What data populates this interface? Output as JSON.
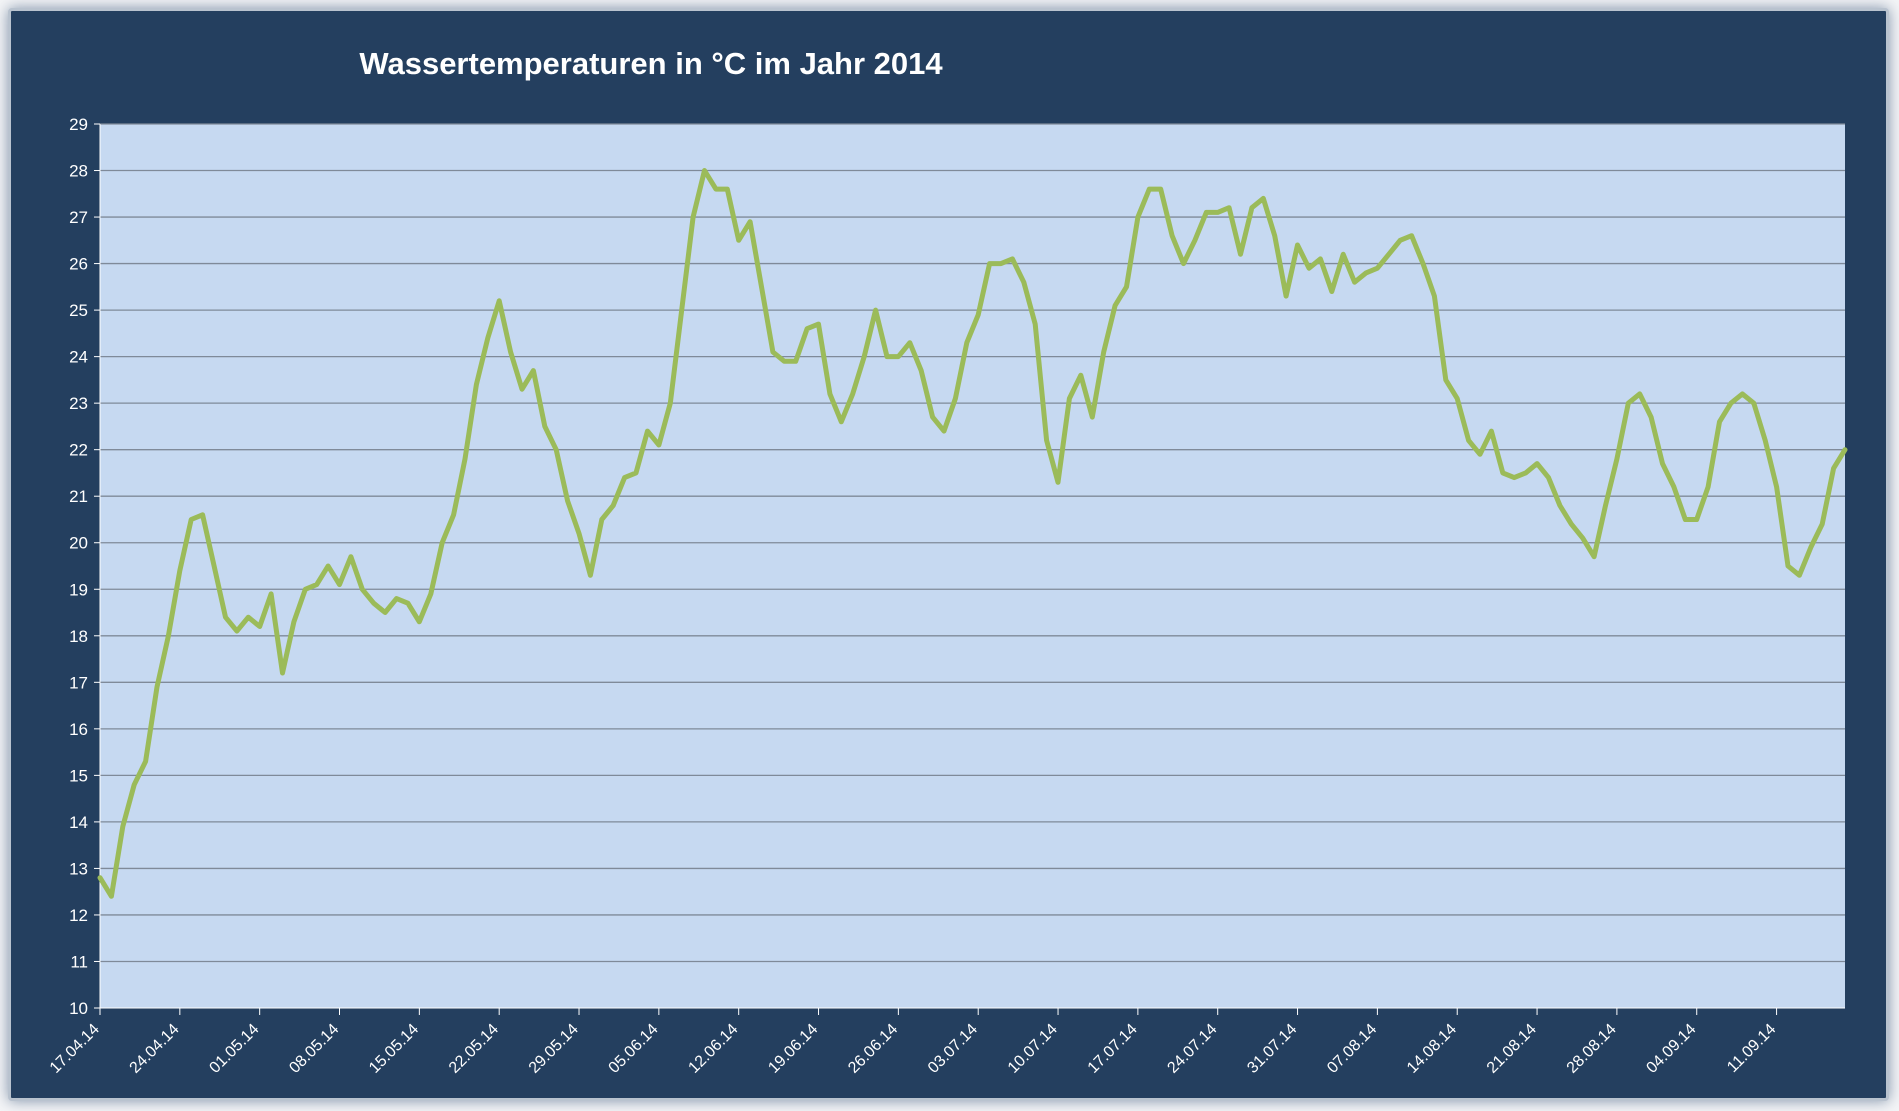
{
  "chart_data": {
    "type": "line",
    "title": "Wassertemperaturen in °C  im Jahr 2014",
    "xlabel": "",
    "ylabel": "",
    "ylim": [
      10,
      29
    ],
    "yticks": [
      10,
      11,
      12,
      13,
      14,
      15,
      16,
      17,
      18,
      19,
      20,
      21,
      22,
      23,
      24,
      25,
      26,
      27,
      28,
      29
    ],
    "xlim": [
      "2014-04-17",
      "2014-09-17"
    ],
    "xtick_labels": [
      "17.04.14",
      "24.04.14",
      "01.05.14",
      "08.05.14",
      "15.05.14",
      "22.05.14",
      "29.05.14",
      "05.06.14",
      "12.06.14",
      "19.06.14",
      "26.06.14",
      "03.07.14",
      "10.07.14",
      "17.07.14",
      "24.07.14",
      "31.07.14",
      "07.08.14",
      "14.08.14",
      "21.08.14",
      "28.08.14",
      "04.09.14",
      "11.09.14"
    ],
    "grid": true,
    "legend": "none",
    "colors": {
      "frame": "#243f5f",
      "plot_bg": "#c6d9f1",
      "grid": "#7f8a99",
      "line": "#9bbb59",
      "text": "#ffffff"
    },
    "series": [
      {
        "x": [
          "2014-04-17",
          "2014-04-18",
          "2014-04-19",
          "2014-04-20",
          "2014-04-21",
          "2014-04-22",
          "2014-04-23",
          "2014-04-24",
          "2014-04-25",
          "2014-04-26",
          "2014-04-27",
          "2014-04-28",
          "2014-04-29",
          "2014-04-30",
          "2014-05-01",
          "2014-05-02",
          "2014-05-03",
          "2014-05-04",
          "2014-05-05",
          "2014-05-06",
          "2014-05-07",
          "2014-05-08",
          "2014-05-09",
          "2014-05-10",
          "2014-05-11",
          "2014-05-12",
          "2014-05-13",
          "2014-05-14",
          "2014-05-15",
          "2014-05-16",
          "2014-05-17",
          "2014-05-18",
          "2014-05-19",
          "2014-05-20",
          "2014-05-21",
          "2014-05-22",
          "2014-05-23",
          "2014-05-24",
          "2014-05-25",
          "2014-05-26",
          "2014-05-27",
          "2014-05-28",
          "2014-05-29",
          "2014-05-30",
          "2014-05-31",
          "2014-06-01",
          "2014-06-02",
          "2014-06-03",
          "2014-06-04",
          "2014-06-05",
          "2014-06-06",
          "2014-06-07",
          "2014-06-08",
          "2014-06-09",
          "2014-06-10",
          "2014-06-11",
          "2014-06-12",
          "2014-06-13",
          "2014-06-14",
          "2014-06-15",
          "2014-06-16",
          "2014-06-17",
          "2014-06-18",
          "2014-06-19",
          "2014-06-20",
          "2014-06-21",
          "2014-06-22",
          "2014-06-23",
          "2014-06-24",
          "2014-06-25",
          "2014-06-26",
          "2014-06-27",
          "2014-06-28",
          "2014-06-29",
          "2014-06-30",
          "2014-07-01",
          "2014-07-02",
          "2014-07-03",
          "2014-07-04",
          "2014-07-05",
          "2014-07-06",
          "2014-07-07",
          "2014-07-08",
          "2014-07-09",
          "2014-07-10",
          "2014-07-11",
          "2014-07-12",
          "2014-07-13",
          "2014-07-14",
          "2014-07-15",
          "2014-07-16",
          "2014-07-17",
          "2014-07-18",
          "2014-07-19",
          "2014-07-20",
          "2014-07-21",
          "2014-07-22",
          "2014-07-23",
          "2014-07-24",
          "2014-07-25",
          "2014-07-26",
          "2014-07-27",
          "2014-07-28",
          "2014-07-29",
          "2014-07-30",
          "2014-07-31",
          "2014-08-01",
          "2014-08-02",
          "2014-08-03",
          "2014-08-04",
          "2014-08-05",
          "2014-08-06",
          "2014-08-07",
          "2014-08-08",
          "2014-08-09",
          "2014-08-10",
          "2014-08-11",
          "2014-08-12",
          "2014-08-13",
          "2014-08-14",
          "2014-08-15",
          "2014-08-16",
          "2014-08-17",
          "2014-08-18",
          "2014-08-19",
          "2014-08-20",
          "2014-08-21",
          "2014-08-22",
          "2014-08-23",
          "2014-08-24",
          "2014-08-25",
          "2014-08-26",
          "2014-08-27",
          "2014-08-28",
          "2014-08-29",
          "2014-08-30",
          "2014-08-31",
          "2014-09-01",
          "2014-09-02",
          "2014-09-03",
          "2014-09-04",
          "2014-09-05",
          "2014-09-06",
          "2014-09-07",
          "2014-09-08",
          "2014-09-09",
          "2014-09-10",
          "2014-09-11",
          "2014-09-12",
          "2014-09-13",
          "2014-09-14",
          "2014-09-15",
          "2014-09-16",
          "2014-09-17"
        ],
        "values": [
          12.8,
          12.4,
          13.9,
          14.8,
          15.3,
          16.9,
          18.0,
          19.4,
          20.5,
          20.6,
          19.5,
          18.4,
          18.1,
          18.4,
          18.2,
          18.9,
          17.2,
          18.3,
          19.0,
          19.1,
          19.5,
          19.1,
          19.7,
          19.0,
          18.7,
          18.5,
          18.8,
          18.7,
          18.3,
          18.9,
          20.0,
          20.6,
          21.8,
          23.4,
          24.4,
          25.2,
          24.1,
          23.3,
          23.7,
          22.5,
          22.0,
          20.9,
          20.2,
          19.3,
          20.5,
          20.8,
          21.4,
          21.5,
          22.4,
          22.1,
          23.0,
          25.0,
          27.0,
          28.0,
          27.6,
          27.6,
          26.5,
          26.9,
          25.5,
          24.1,
          23.9,
          23.9,
          24.6,
          24.7,
          23.2,
          22.6,
          23.2,
          24.0,
          25.0,
          24.0,
          24.0,
          24.3,
          23.7,
          22.7,
          22.4,
          23.1,
          24.3,
          24.9,
          26.0,
          26.0,
          26.1,
          25.6,
          24.7,
          22.2,
          21.3,
          23.1,
          23.6,
          22.7,
          24.1,
          25.1,
          25.5,
          27.0,
          27.6,
          27.6,
          26.6,
          26.0,
          26.5,
          27.1,
          27.1,
          27.2,
          26.2,
          27.2,
          27.4,
          26.6,
          25.3,
          26.4,
          25.9,
          26.1,
          25.4,
          26.2,
          25.6,
          25.8,
          25.9,
          26.2,
          26.5,
          26.6,
          26.0,
          25.3,
          23.5,
          23.1,
          22.2,
          21.9,
          22.4,
          21.5,
          21.4,
          21.5,
          21.7,
          21.4,
          20.8,
          20.4,
          20.1,
          19.7,
          20.8,
          21.8,
          23.0,
          23.2,
          22.7,
          21.7,
          21.2,
          20.5,
          20.5,
          21.2,
          22.6,
          23.0,
          23.2,
          23.0,
          22.2,
          21.2,
          19.5,
          19.3,
          19.9,
          20.4,
          21.6,
          22.0
        ]
      }
    ]
  }
}
